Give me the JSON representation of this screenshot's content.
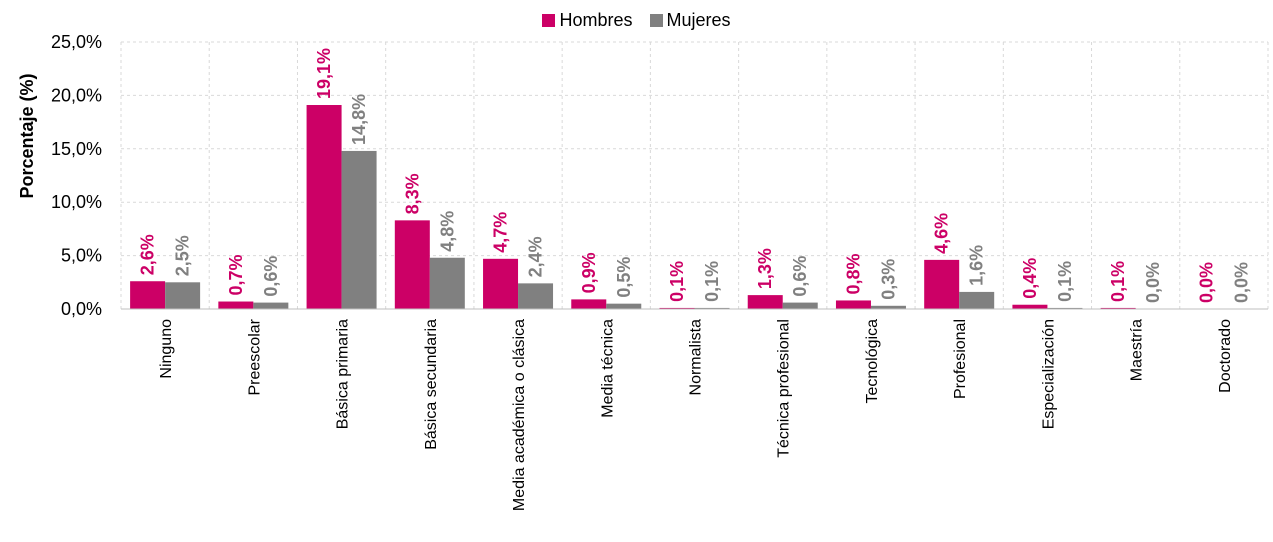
{
  "chart_data": {
    "type": "bar",
    "title": "",
    "xlabel": "",
    "ylabel": "Porcentaje (%)",
    "ylim": [
      0,
      25
    ],
    "yticks": [
      "0,0%",
      "5,0%",
      "10,0%",
      "15,0%",
      "20,0%",
      "25,0%"
    ],
    "grid": true,
    "legend_position": "top-center",
    "categories": [
      "Ninguno",
      "Preescolar",
      "Básica primaria",
      "Básica secundaria",
      "Media académica o clásica",
      "Media técnica",
      "Normalista",
      "Técnica profesional",
      "Tecnológica",
      "Profesional",
      "Especialización",
      "Maestría",
      "Doctorado"
    ],
    "series": [
      {
        "name": "Hombres",
        "color": "#CC0066",
        "values": [
          2.6,
          0.7,
          19.1,
          8.3,
          4.7,
          0.9,
          0.1,
          1.3,
          0.8,
          4.6,
          0.4,
          0.1,
          0.0
        ],
        "labels": [
          "2,6%",
          "0,7%",
          "19,1%",
          "8,3%",
          "4,7%",
          "0,9%",
          "0,1%",
          "1,3%",
          "0,8%",
          "4,6%",
          "0,4%",
          "0,1%",
          "0,0%"
        ]
      },
      {
        "name": "Mujeres",
        "color": "#808080",
        "values": [
          2.5,
          0.6,
          14.8,
          4.8,
          2.4,
          0.5,
          0.1,
          0.6,
          0.3,
          1.6,
          0.1,
          0.0,
          0.0
        ],
        "labels": [
          "2,5%",
          "0,6%",
          "14,8%",
          "4,8%",
          "2,4%",
          "0,5%",
          "0,1%",
          "0,6%",
          "0,3%",
          "1,6%",
          "0,1%",
          "0,0%",
          "0,0%"
        ]
      }
    ]
  }
}
